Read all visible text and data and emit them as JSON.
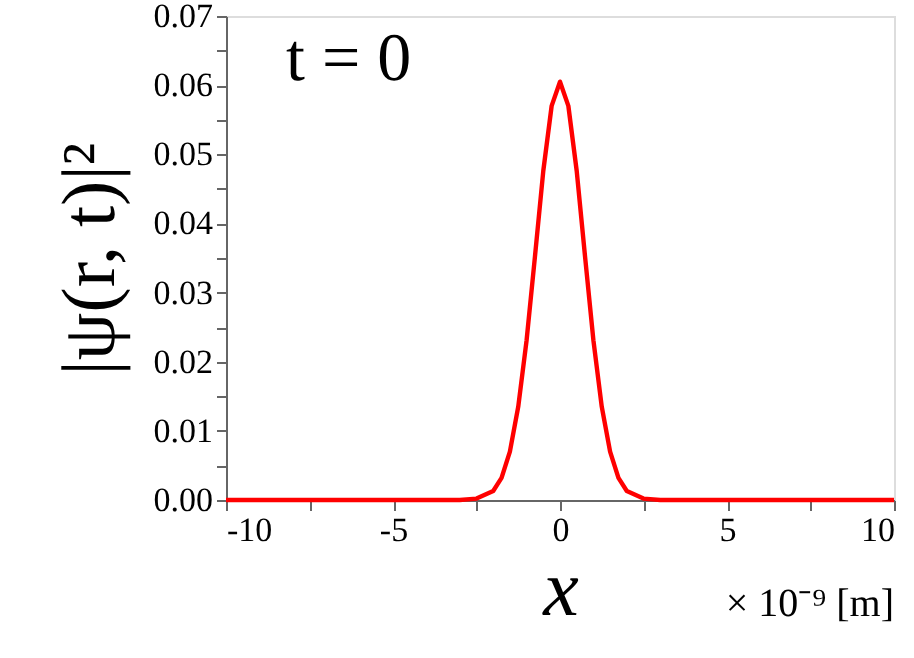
{
  "chart_data": {
    "type": "line",
    "xlabel": "x",
    "ylabel": "|ψ(r, t)|²",
    "annotations": [
      "t = 0",
      "× 10⁻⁹ [m]"
    ],
    "series": [
      {
        "color": "#ff0000",
        "x": [
          -10,
          -3,
          -2.5,
          -2,
          -1.75,
          -1.5,
          -1.25,
          -1,
          -0.75,
          -0.5,
          -0.25,
          0,
          0.25,
          0.5,
          0.75,
          1,
          1.25,
          1.5,
          1.75,
          2,
          2.5,
          3,
          10
        ],
        "values": [
          0,
          0,
          0.0002,
          0.0013,
          0.0032,
          0.007,
          0.0135,
          0.0231,
          0.0352,
          0.0476,
          0.057,
          0.0605,
          0.057,
          0.0476,
          0.0352,
          0.0231,
          0.0135,
          0.007,
          0.0032,
          0.0013,
          0.0002,
          0,
          0
        ]
      }
    ],
    "xlim": [
      -10,
      10
    ],
    "xticks": [
      -10,
      {
        "value": -7.5,
        "label": null
      },
      -5,
      {
        "value": -2.5,
        "label": null
      },
      0,
      {
        "value": 2.5,
        "label": null
      },
      5,
      {
        "value": 7.5,
        "label": null
      },
      10
    ],
    "ylim": [
      0,
      0.07
    ],
    "yticks": [
      {
        "value": 0,
        "label": "0.00"
      },
      {
        "value": 0.005,
        "label": null
      },
      {
        "value": 0.01,
        "label": "0.01"
      },
      {
        "value": 0.015,
        "label": null
      },
      {
        "value": 0.02,
        "label": "0.02"
      },
      {
        "value": 0.025,
        "label": null
      },
      {
        "value": 0.03,
        "label": "0.03"
      },
      {
        "value": 0.035,
        "label": null
      },
      {
        "value": 0.04,
        "label": "0.04"
      },
      {
        "value": 0.045,
        "label": null
      },
      {
        "value": 0.05,
        "label": "0.05"
      },
      {
        "value": 0.055,
        "label": null
      },
      {
        "value": 0.06,
        "label": "0.06"
      },
      {
        "value": 0.065,
        "label": null
      },
      {
        "value": 0.07,
        "label": "0.07"
      }
    ],
    "grid": false,
    "marker": "none",
    "line_style": "solid"
  }
}
